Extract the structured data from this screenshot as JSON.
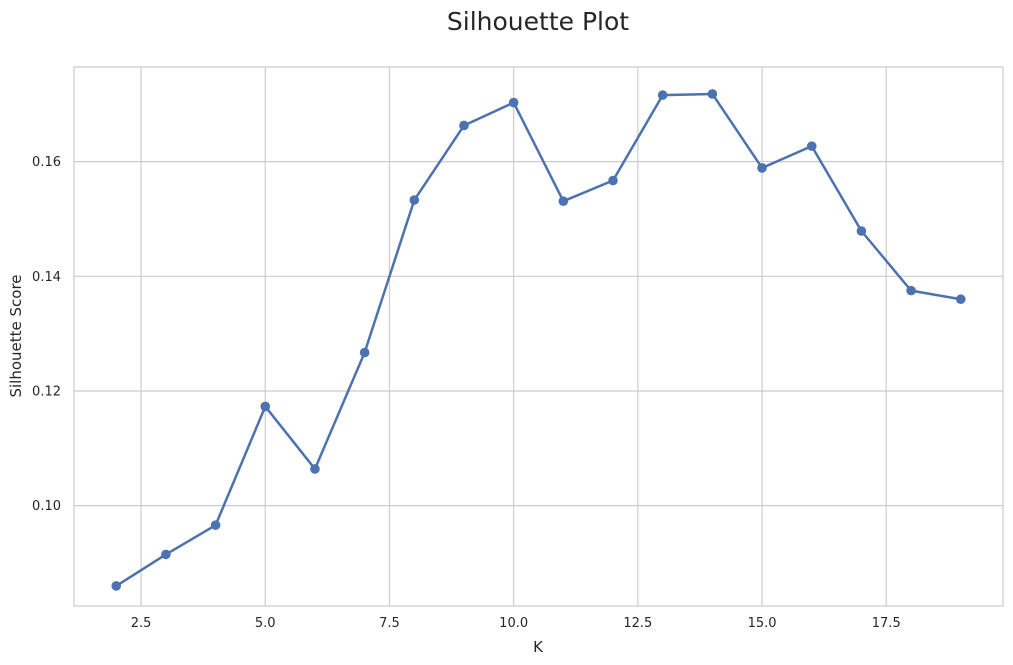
{
  "chart_data": {
    "type": "line",
    "title": "Silhouette Plot",
    "xlabel": "K",
    "ylabel": "Silhouette Score",
    "xlim": [
      1.15,
      19.85
    ],
    "ylim": [
      0.0825,
      0.1765
    ],
    "xticks": [
      2.5,
      5.0,
      7.5,
      10.0,
      12.5,
      15.0,
      17.5
    ],
    "xtick_labels": [
      "2.5",
      "5.0",
      "7.5",
      "10.0",
      "12.5",
      "15.0",
      "17.5"
    ],
    "yticks": [
      0.1,
      0.12,
      0.14,
      0.16
    ],
    "ytick_labels": [
      "0.10",
      "0.12",
      "0.14",
      "0.16"
    ],
    "grid": true,
    "series": [
      {
        "x": [
          2,
          3,
          4,
          5,
          6,
          7,
          8,
          9,
          10,
          11,
          12,
          13,
          14,
          15,
          16,
          17,
          18,
          19
        ],
        "y": [
          0.086,
          0.0915,
          0.0966,
          0.1173,
          0.1064,
          0.1267,
          0.1533,
          0.1663,
          0.1703,
          0.1531,
          0.1567,
          0.1716,
          0.1718,
          0.1589,
          0.1627,
          0.1479,
          0.1375,
          0.136
        ],
        "color": "#4c72b0",
        "marker": "circle"
      }
    ]
  }
}
